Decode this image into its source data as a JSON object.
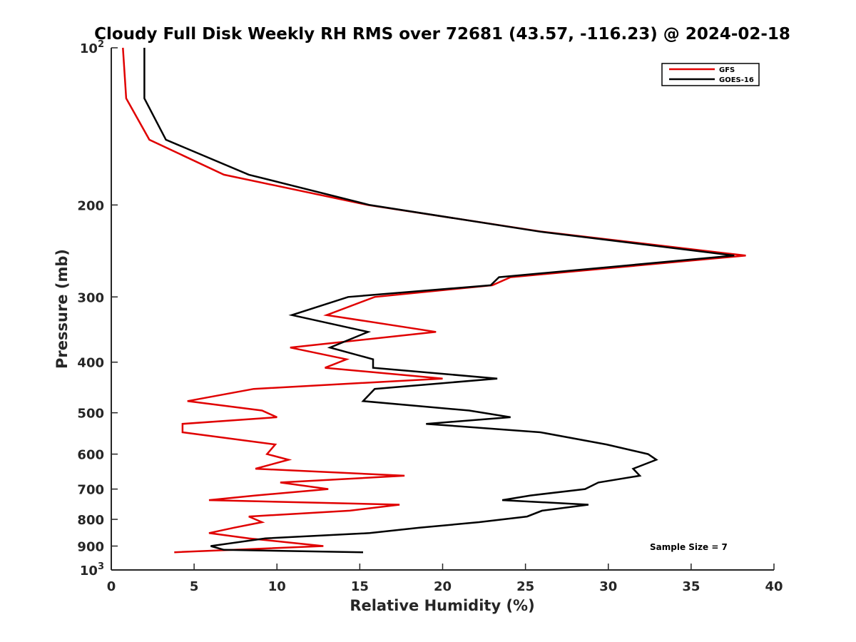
{
  "chart_data": {
    "type": "line",
    "title": "Cloudy Full Disk Weekly RH RMS over 72681 (43.57, -116.23) @ 2024-02-18",
    "xlabel": "Relative Humidity (%)",
    "ylabel": "Pressure (mb)",
    "xlim": [
      0,
      40
    ],
    "ylim": [
      100,
      1000
    ],
    "yscale": "log",
    "y_reversed": true,
    "grid": false,
    "legend_position": "top-right",
    "x_ticks": [
      "0",
      "5",
      "10",
      "15",
      "20",
      "25",
      "30",
      "35",
      "40"
    ],
    "y_ticks": [
      {
        "value": 100,
        "base": "10",
        "exp": "2"
      },
      {
        "value": 200,
        "label": "200"
      },
      {
        "value": 300,
        "label": "300"
      },
      {
        "value": 400,
        "label": "400"
      },
      {
        "value": 500,
        "label": "500"
      },
      {
        "value": 600,
        "label": "600"
      },
      {
        "value": 700,
        "label": "700"
      },
      {
        "value": 800,
        "label": "800"
      },
      {
        "value": 900,
        "label": "900"
      },
      {
        "value": 1000,
        "base": "10",
        "exp": "3"
      }
    ],
    "annotation": "Sample Size = 7",
    "series": [
      {
        "name": "GFS",
        "color": "#e00000",
        "points": [
          [
            0.7,
            100
          ],
          [
            0.9,
            125
          ],
          [
            2.3,
            150
          ],
          [
            6.8,
            175
          ],
          [
            15.5,
            200
          ],
          [
            26.0,
            225
          ],
          [
            38.3,
            250
          ],
          [
            24.1,
            275
          ],
          [
            23.0,
            285
          ],
          [
            15.9,
            300
          ],
          [
            13.0,
            325
          ],
          [
            19.6,
            350
          ],
          [
            10.8,
            375
          ],
          [
            14.2,
            395
          ],
          [
            12.9,
            410
          ],
          [
            20.0,
            430
          ],
          [
            8.6,
            450
          ],
          [
            4.6,
            475
          ],
          [
            9.1,
            495
          ],
          [
            10.0,
            510
          ],
          [
            4.3,
            525
          ],
          [
            4.3,
            545
          ],
          [
            9.9,
            575
          ],
          [
            9.4,
            600
          ],
          [
            10.7,
            615
          ],
          [
            8.7,
            640
          ],
          [
            17.7,
            660
          ],
          [
            10.2,
            680
          ],
          [
            13.1,
            700
          ],
          [
            8.7,
            720
          ],
          [
            5.9,
            735
          ],
          [
            17.4,
            750
          ],
          [
            14.4,
            770
          ],
          [
            8.3,
            790
          ],
          [
            9.1,
            810
          ],
          [
            7.4,
            830
          ],
          [
            5.9,
            850
          ],
          [
            8.3,
            870
          ],
          [
            12.8,
            900
          ],
          [
            3.8,
            925
          ]
        ]
      },
      {
        "name": "GOES-16",
        "color": "#000000",
        "points": [
          [
            2.0,
            100
          ],
          [
            2.0,
            125
          ],
          [
            3.3,
            150
          ],
          [
            8.3,
            175
          ],
          [
            15.6,
            200
          ],
          [
            25.9,
            225
          ],
          [
            37.6,
            250
          ],
          [
            23.4,
            275
          ],
          [
            22.9,
            285
          ],
          [
            14.3,
            300
          ],
          [
            10.9,
            325
          ],
          [
            15.5,
            350
          ],
          [
            13.2,
            375
          ],
          [
            15.8,
            395
          ],
          [
            15.8,
            410
          ],
          [
            23.3,
            430
          ],
          [
            15.9,
            450
          ],
          [
            15.2,
            475
          ],
          [
            21.6,
            495
          ],
          [
            24.1,
            510
          ],
          [
            19.0,
            525
          ],
          [
            25.9,
            545
          ],
          [
            29.9,
            575
          ],
          [
            32.4,
            600
          ],
          [
            32.9,
            615
          ],
          [
            31.5,
            640
          ],
          [
            31.9,
            660
          ],
          [
            29.4,
            680
          ],
          [
            28.6,
            700
          ],
          [
            25.3,
            720
          ],
          [
            23.6,
            735
          ],
          [
            28.8,
            750
          ],
          [
            26.0,
            770
          ],
          [
            25.1,
            790
          ],
          [
            22.2,
            810
          ],
          [
            18.6,
            830
          ],
          [
            15.6,
            850
          ],
          [
            9.3,
            870
          ],
          [
            6.0,
            900
          ],
          [
            6.8,
            915
          ],
          [
            15.2,
            925
          ]
        ]
      }
    ]
  }
}
